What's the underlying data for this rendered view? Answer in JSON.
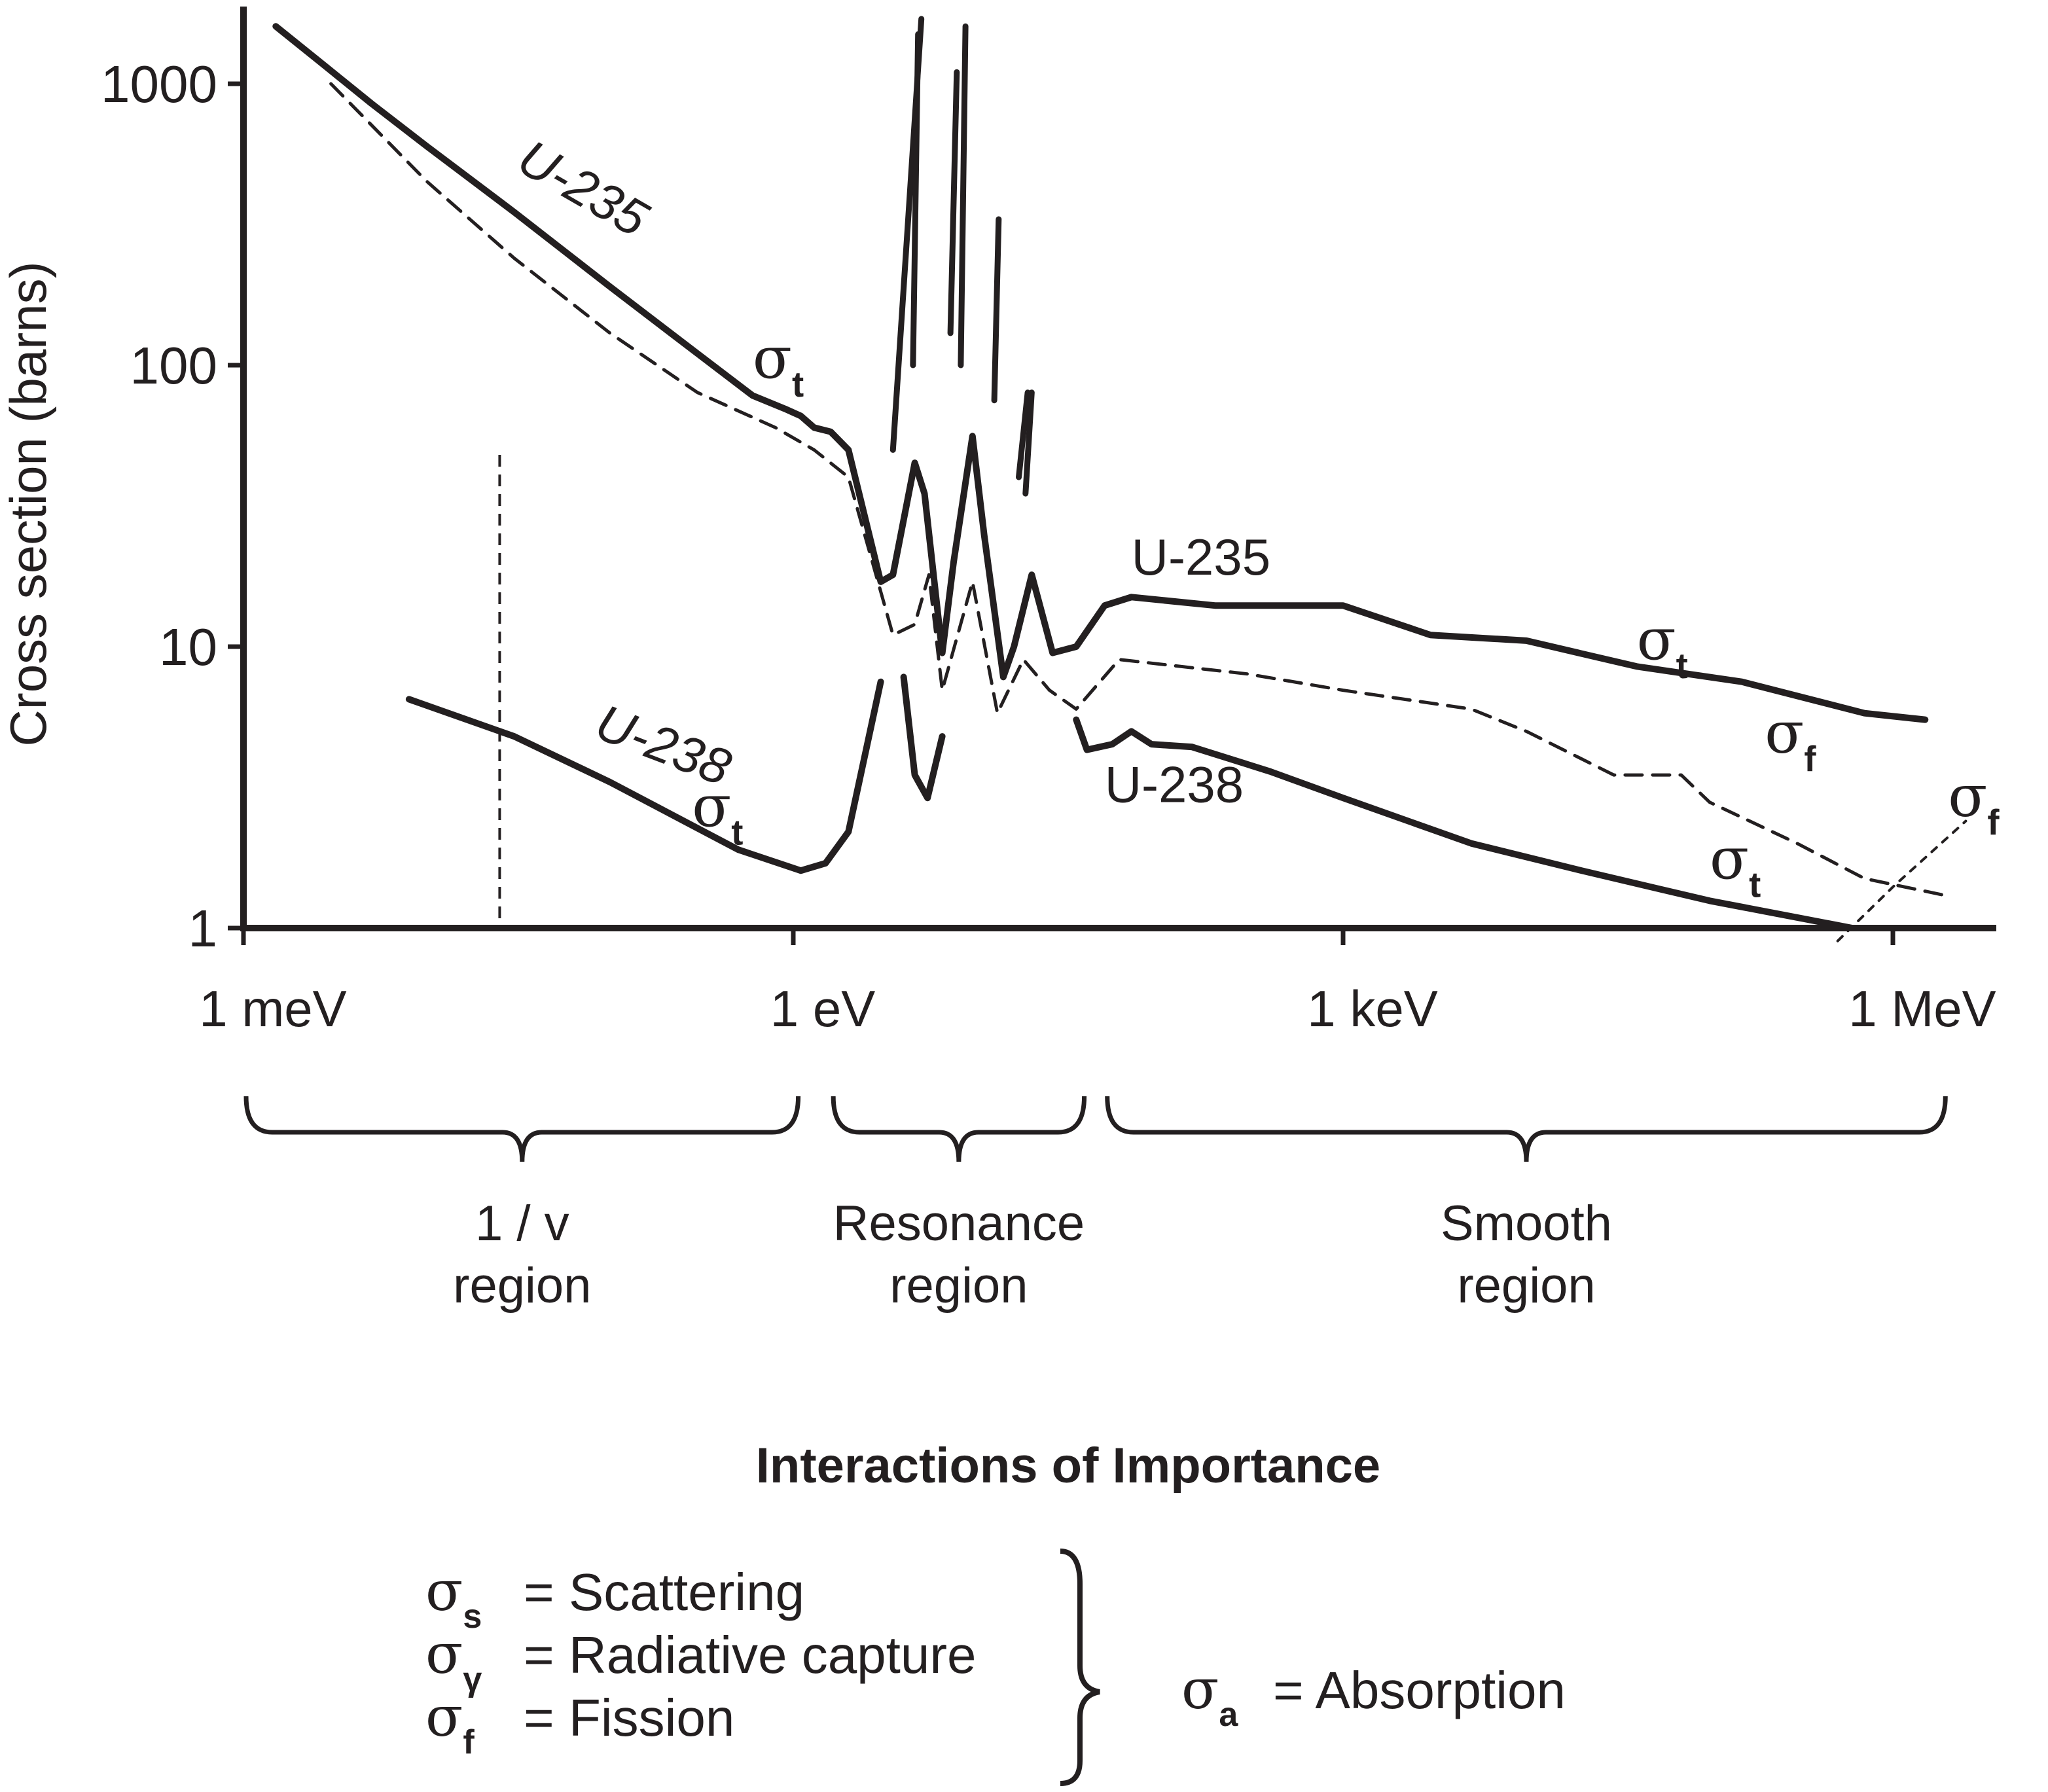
{
  "chart_data": {
    "type": "line",
    "xscale": "log",
    "yscale": "log",
    "x_unit": "eV",
    "ylabel": "Cross section   (barns)",
    "xlim": [
      0.001,
      3000000
    ],
    "ylim": [
      1,
      2000
    ],
    "y_ticks": [
      {
        "value": 1,
        "label": "1"
      },
      {
        "value": 10,
        "label": "10"
      },
      {
        "value": 100,
        "label": "100"
      },
      {
        "value": 1000,
        "label": "1000"
      }
    ],
    "x_ticks": [
      {
        "value": 0.001,
        "label": "1 meV"
      },
      {
        "value": 1,
        "label": "1 eV"
      },
      {
        "value": 1000,
        "label": "1 keV"
      },
      {
        "value": 1000000,
        "label": "1 MeV"
      }
    ],
    "reference_line_x": 0.025,
    "series": [
      {
        "name": "U-235",
        "label": "U-235",
        "style": "solid",
        "points": [
          [
            0.0015,
            1600
          ],
          [
            0.0026,
            1200
          ],
          [
            0.005,
            850
          ],
          [
            0.01,
            600
          ],
          [
            0.03,
            350
          ],
          [
            0.1,
            190
          ],
          [
            0.3,
            110
          ],
          [
            0.6,
            78
          ],
          [
            0.9,
            70
          ],
          [
            1.1,
            66
          ],
          [
            1.3,
            60
          ],
          [
            1.6,
            58
          ],
          [
            2.0,
            50
          ],
          [
            3.0,
            17
          ],
          [
            3.5,
            18
          ],
          [
            4.6,
            45
          ],
          [
            5.2,
            35
          ],
          [
            6.5,
            9.5
          ],
          [
            7.5,
            20
          ],
          [
            9.5,
            56
          ],
          [
            11,
            25
          ],
          [
            14,
            7.8
          ],
          [
            16,
            10
          ],
          [
            20,
            18
          ],
          [
            26,
            9.5
          ],
          [
            35,
            10
          ],
          [
            50,
            14
          ],
          [
            70,
            15
          ],
          [
            200,
            14
          ],
          [
            500,
            14
          ],
          [
            1000,
            14
          ],
          [
            3000,
            11
          ],
          [
            10000,
            10.5
          ],
          [
            40000,
            8.5
          ],
          [
            150000,
            7.5
          ],
          [
            700000,
            5.8
          ],
          [
            1500000,
            5.5
          ]
        ]
      },
      {
        "name": "U-235 fission (dashed)",
        "style": "dashed",
        "points": [
          [
            0.003,
            1000
          ],
          [
            0.01,
            450
          ],
          [
            0.03,
            240
          ],
          [
            0.1,
            130
          ],
          [
            0.3,
            80
          ],
          [
            0.8,
            60
          ],
          [
            1.3,
            50
          ],
          [
            2.0,
            40
          ],
          [
            3.5,
            11
          ],
          [
            4.6,
            12
          ],
          [
            5.5,
            18
          ],
          [
            6.5,
            7
          ],
          [
            9.5,
            17
          ],
          [
            13,
            5.8
          ],
          [
            18,
            9
          ],
          [
            25,
            7
          ],
          [
            35,
            6
          ],
          [
            60,
            9
          ],
          [
            300,
            8
          ],
          [
            1000,
            7
          ],
          [
            5000,
            6
          ],
          [
            10000,
            5
          ],
          [
            30000,
            3.5
          ],
          [
            70000,
            3.5
          ],
          [
            100000,
            2.8
          ],
          [
            300000,
            2.0
          ],
          [
            700000,
            1.5
          ],
          [
            2000000,
            1.3
          ]
        ]
      },
      {
        "name": "U-238",
        "label": "U-238",
        "style": "solid",
        "points": [
          [
            0.008,
            6.5
          ],
          [
            0.03,
            4.8
          ],
          [
            0.1,
            3.3
          ],
          [
            0.5,
            1.9
          ],
          [
            1.1,
            1.6
          ],
          [
            1.5,
            1.7
          ],
          [
            2.0,
            2.2
          ],
          [
            3.0,
            7.5
          ]
        ]
      },
      {
        "name": "U-238 (6.7 eV dip)",
        "style": "solid",
        "points": [
          [
            4.0,
            7.8
          ],
          [
            4.6,
            3.5
          ],
          [
            5.4,
            2.9
          ],
          [
            6.5,
            4.8
          ]
        ]
      },
      {
        "name": "U-238 (smooth region)",
        "style": "solid",
        "points": [
          [
            35,
            5.5
          ],
          [
            40,
            4.3
          ],
          [
            55,
            4.5
          ],
          [
            70,
            5.0
          ],
          [
            90,
            4.5
          ],
          [
            150,
            4.4
          ],
          [
            400,
            3.6
          ],
          [
            1000,
            2.9
          ],
          [
            5000,
            2.0
          ],
          [
            20000,
            1.6
          ],
          [
            100000,
            1.25
          ],
          [
            600000,
            1.0
          ],
          [
            1500000,
            1.0
          ]
        ]
      },
      {
        "name": "U-238 fission (dotted)",
        "style": "dotted",
        "points": [
          [
            500000,
            0.9
          ],
          [
            1000000,
            1.4
          ],
          [
            2500000,
            2.4
          ]
        ]
      }
    ],
    "resonance_peaks": [
      {
        "points": [
          [
            3.5,
            50
          ],
          [
            5.0,
            1700
          ]
        ]
      },
      {
        "points": [
          [
            4.5,
            100
          ],
          [
            4.8,
            1500
          ]
        ]
      },
      {
        "points": [
          [
            7.2,
            130
          ],
          [
            7.8,
            1100
          ]
        ]
      },
      {
        "points": [
          [
            8.2,
            100
          ],
          [
            8.7,
            1600
          ]
        ]
      },
      {
        "points": [
          [
            12.5,
            75
          ],
          [
            13.2,
            330
          ]
        ]
      },
      {
        "points": [
          [
            17,
            40
          ],
          [
            19,
            80
          ]
        ]
      },
      {
        "points": [
          [
            18.5,
            35
          ],
          [
            20,
            80
          ]
        ]
      }
    ],
    "curve_labels": [
      {
        "text": "U-235",
        "x": 0.03,
        "y": 500,
        "rotate": true
      },
      {
        "text": "σ",
        "sub": "t",
        "x": 0.6,
        "y": 90
      },
      {
        "text": "U-235",
        "x": 70,
        "y": 18
      },
      {
        "text": "σ",
        "sub": "t",
        "x": 40000,
        "y": 9
      },
      {
        "text": "σ",
        "sub": "f",
        "x": 200000,
        "y": 4.2
      },
      {
        "text": "σ",
        "sub": "f",
        "x": 2000000,
        "y": 2.5
      },
      {
        "text": "U-238",
        "x": 0.08,
        "y": 4.8,
        "rotate": true
      },
      {
        "text": "σ",
        "sub": "t",
        "x": 0.28,
        "y": 2.3
      },
      {
        "text": "U-238",
        "x": 50,
        "y": 2.8
      },
      {
        "text": "σ",
        "sub": "t",
        "x": 100000,
        "y": 1.5
      }
    ],
    "regions": [
      {
        "line1": "1 / v",
        "line2": "region",
        "from": 0.001,
        "to": 1.1
      },
      {
        "line1": "Resonance",
        "line2": "region",
        "from": 1.6,
        "to": 40
      },
      {
        "line1": "Smooth",
        "line2": "region",
        "from": 50,
        "to": 2000000
      }
    ],
    "legend": {
      "title": "Interactions of Importance",
      "items": [
        {
          "symbol": "σ",
          "sub": "s",
          "text": "=  Scattering"
        },
        {
          "symbol": "σ",
          "sub": "γ",
          "text": "=  Radiative capture"
        },
        {
          "symbol": "σ",
          "sub": "f",
          "text": "=  Fission"
        }
      ],
      "combined": {
        "symbol": "σ",
        "sub": "a",
        "text": "=  Absorption"
      }
    }
  }
}
